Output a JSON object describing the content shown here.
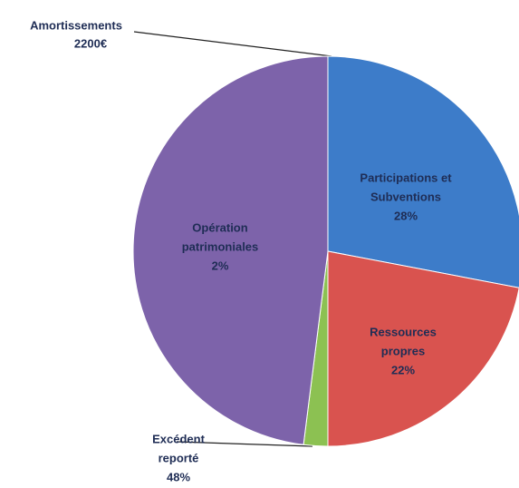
{
  "chart_data": {
    "type": "pie",
    "categories": [
      [
        "Participations et",
        "Subventions"
      ],
      [
        "Ressources",
        "propres"
      ],
      [
        "Opération",
        "patrimoniales"
      ],
      [
        "Excédent",
        "reporté"
      ]
    ],
    "values": [
      28,
      22,
      2,
      48
    ],
    "value_labels": [
      "28%",
      "22%",
      "2%",
      "48%"
    ],
    "colors": [
      "#3d7cc9",
      "#d9534f",
      "#8cc152",
      "#7d63aa"
    ],
    "annotations": [
      {
        "text": "Amortissements",
        "value_label": "2200€"
      }
    ]
  }
}
